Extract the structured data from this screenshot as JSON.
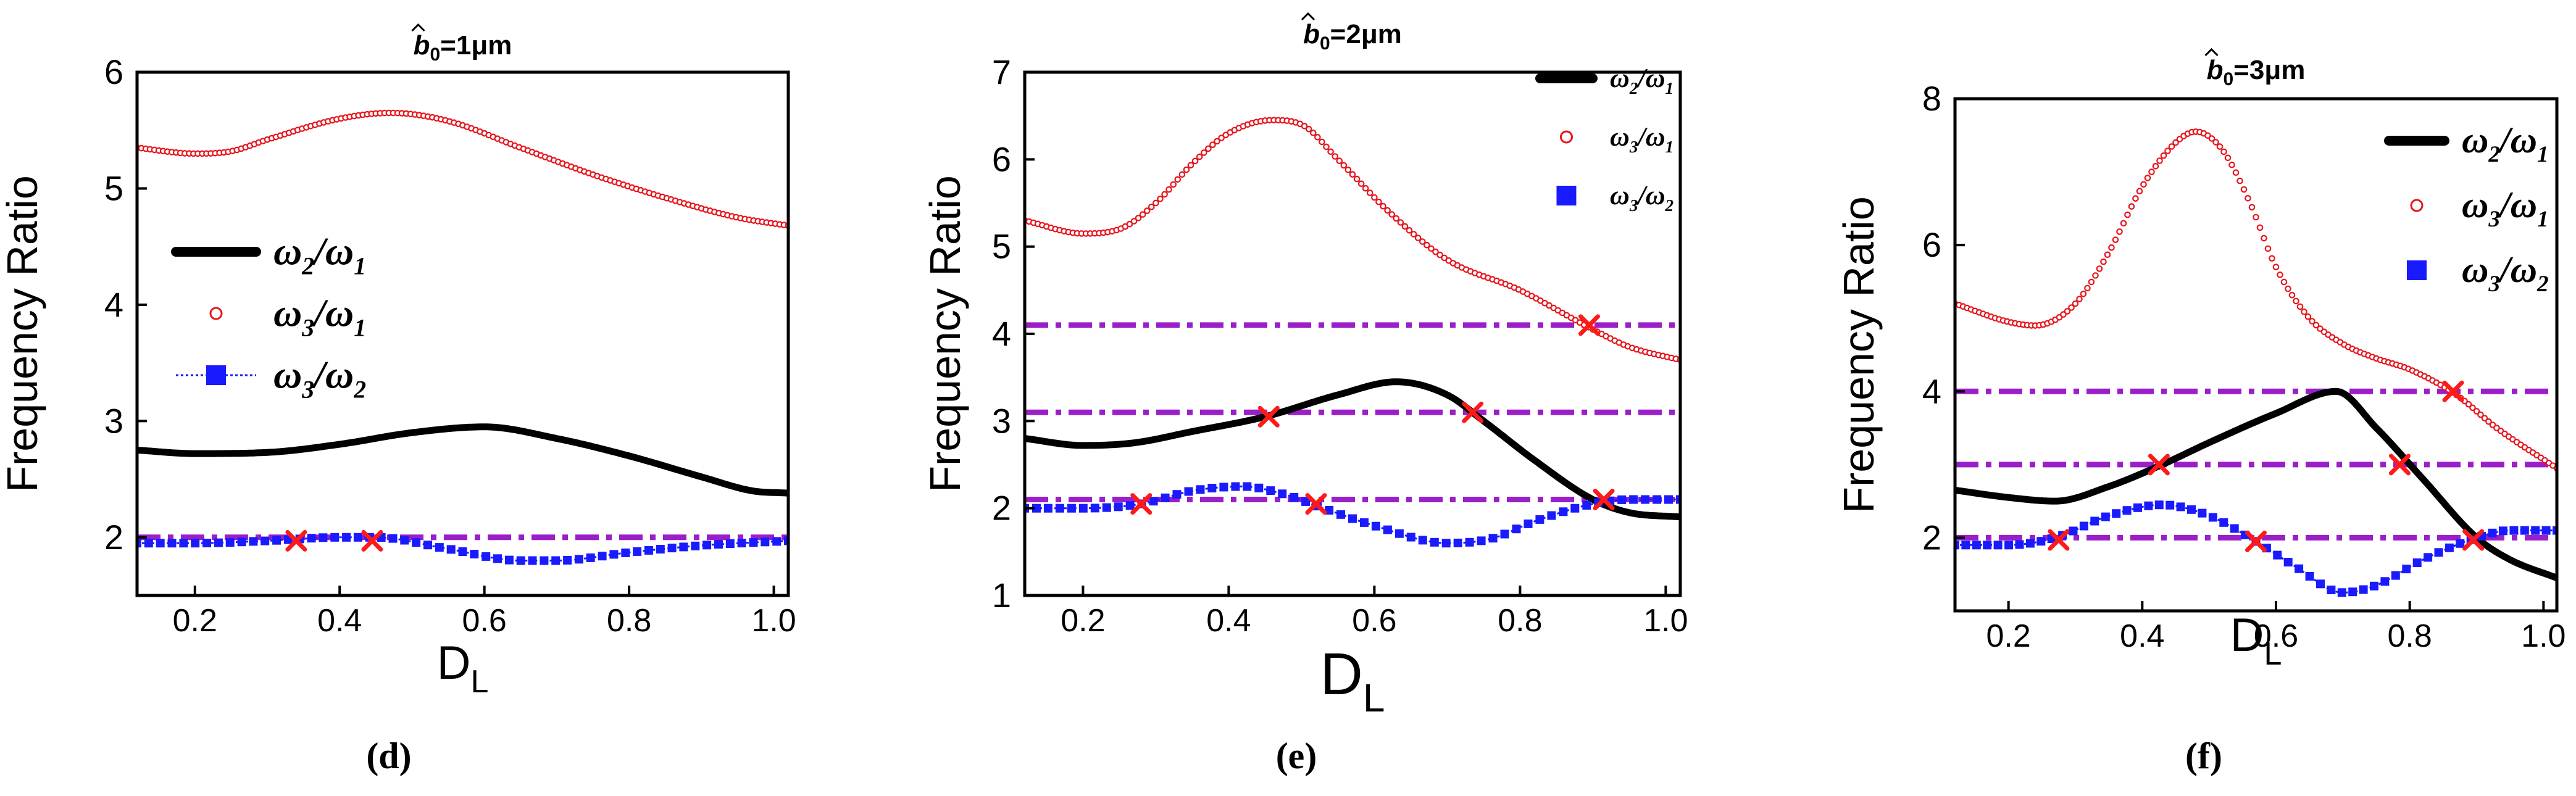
{
  "colors": {
    "axis": "#000000",
    "series1": "#000000",
    "series2": "#e8141c",
    "series3": "#1a1aff",
    "ref_line": "#9b1fc9",
    "cross": "#ff1a1a"
  },
  "chart_data": [
    {
      "id": "d",
      "type": "line",
      "panel_label": "(d)",
      "title_prefix": "b",
      "title_sub": "0",
      "title_suffix": "=1μm",
      "xlabel": "D",
      "xlabel_sub": "L",
      "ylabel": "Frequency Ratio",
      "xlim": [
        0.12,
        1.02
      ],
      "ylim": [
        1.5,
        6
      ],
      "xticks": [
        0.2,
        0.4,
        0.6,
        0.8,
        1.0
      ],
      "xtick_labels": [
        "0.2",
        "0.4",
        "0.6",
        "0.8",
        "1.0"
      ],
      "yticks": [
        2,
        3,
        4,
        5,
        6
      ],
      "ytick_labels": [
        "2",
        "3",
        "4",
        "5",
        "6"
      ],
      "legend": {
        "position": "center-left",
        "entries": [
          {
            "series": 0,
            "label": "ω",
            "num_sub": "2",
            "den_sub": "1"
          },
          {
            "series": 1,
            "label": "ω",
            "num_sub": "3",
            "den_sub": "1"
          },
          {
            "series": 2,
            "label": "ω",
            "num_sub": "3",
            "den_sub": "2"
          }
        ]
      },
      "series": [
        {
          "name": "ω2/ω1",
          "style": "thick-line",
          "x": [
            0.12,
            0.2,
            0.3,
            0.4,
            0.5,
            0.6,
            0.7,
            0.8,
            0.9,
            0.97,
            1.02
          ],
          "values": [
            2.75,
            2.72,
            2.73,
            2.8,
            2.9,
            2.95,
            2.85,
            2.7,
            2.52,
            2.4,
            2.38
          ]
        },
        {
          "name": "ω3/ω1",
          "style": "open-circles",
          "x": [
            0.12,
            0.2,
            0.25,
            0.3,
            0.4,
            0.47,
            0.55,
            0.65,
            0.75,
            0.85,
            0.95,
            1.02
          ],
          "values": [
            5.35,
            5.3,
            5.32,
            5.42,
            5.6,
            5.65,
            5.58,
            5.35,
            5.12,
            4.92,
            4.75,
            4.68
          ]
        },
        {
          "name": "ω3/ω2",
          "style": "squares-dotted",
          "x": [
            0.12,
            0.2,
            0.3,
            0.4,
            0.45,
            0.55,
            0.65,
            0.7,
            0.8,
            0.9,
            1.02
          ],
          "values": [
            1.95,
            1.95,
            1.97,
            2.0,
            2.0,
            1.9,
            1.8,
            1.8,
            1.87,
            1.93,
            1.97
          ]
        }
      ],
      "ref_lines": [
        2.0
      ],
      "crosses": [
        {
          "x": 0.34,
          "y": 1.97
        },
        {
          "x": 0.445,
          "y": 1.97
        }
      ]
    },
    {
      "id": "e",
      "type": "line",
      "panel_label": "(e)",
      "title_prefix": "b",
      "title_sub": "0",
      "title_suffix": "=2μm",
      "xlabel": "D",
      "xlabel_sub": "L",
      "ylabel": "Frequency Ratio",
      "xlim": [
        0.12,
        1.02
      ],
      "ylim": [
        1,
        7
      ],
      "xticks": [
        0.2,
        0.4,
        0.6,
        0.8,
        1.0
      ],
      "xtick_labels": [
        "0.2",
        "0.4",
        "0.6",
        "0.8",
        "1.0"
      ],
      "yticks": [
        1,
        2,
        3,
        4,
        5,
        6,
        7
      ],
      "ytick_labels": [
        "1",
        "2",
        "3",
        "4",
        "5",
        "6",
        "7"
      ],
      "legend": {
        "position": "top-right",
        "entries": [
          {
            "series": 0,
            "label": "ω",
            "num_sub": "2",
            "den_sub": "1"
          },
          {
            "series": 1,
            "label": "ω",
            "num_sub": "3",
            "den_sub": "1"
          },
          {
            "series": 2,
            "label": "ω",
            "num_sub": "3",
            "den_sub": "2"
          }
        ]
      },
      "series": [
        {
          "name": "ω2/ω1",
          "style": "thick-line",
          "x": [
            0.12,
            0.2,
            0.27,
            0.35,
            0.45,
            0.55,
            0.63,
            0.7,
            0.75,
            0.82,
            0.9,
            0.95,
            1.02
          ],
          "values": [
            2.8,
            2.72,
            2.75,
            2.88,
            3.05,
            3.3,
            3.45,
            3.3,
            3.0,
            2.55,
            2.1,
            1.95,
            1.9
          ]
        },
        {
          "name": "ω3/ω1",
          "style": "open-circles",
          "x": [
            0.12,
            0.2,
            0.25,
            0.3,
            0.35,
            0.4,
            0.46,
            0.5,
            0.55,
            0.62,
            0.7,
            0.8,
            0.9,
            0.95,
            1.02
          ],
          "values": [
            5.3,
            5.15,
            5.2,
            5.5,
            5.95,
            6.3,
            6.45,
            6.4,
            6.0,
            5.4,
            4.85,
            4.5,
            4.05,
            3.85,
            3.7
          ]
        },
        {
          "name": "ω3/ω2",
          "style": "squares-dotted",
          "x": [
            0.12,
            0.2,
            0.28,
            0.35,
            0.42,
            0.48,
            0.53,
            0.6,
            0.7,
            0.76,
            0.82,
            0.9,
            0.95,
            1.02
          ],
          "values": [
            2.0,
            2.0,
            2.05,
            2.2,
            2.25,
            2.15,
            2.0,
            1.8,
            1.6,
            1.65,
            1.85,
            2.05,
            2.1,
            2.1
          ]
        }
      ],
      "ref_lines": [
        2.1,
        3.1,
        4.1
      ],
      "crosses": [
        {
          "x": 0.28,
          "y": 2.05
        },
        {
          "x": 0.52,
          "y": 2.05
        },
        {
          "x": 0.915,
          "y": 2.1
        },
        {
          "x": 0.455,
          "y": 3.05
        },
        {
          "x": 0.735,
          "y": 3.1
        },
        {
          "x": 0.895,
          "y": 4.1
        }
      ]
    },
    {
      "id": "f",
      "type": "line",
      "panel_label": "(f)",
      "title_prefix": "b",
      "title_sub": "0",
      "title_suffix": "=3μm",
      "xlabel": "D",
      "xlabel_sub": "L",
      "ylabel": "Frequency Ratio",
      "xlim": [
        0.12,
        1.02
      ],
      "ylim": [
        1,
        8
      ],
      "xticks": [
        0.2,
        0.4,
        0.6,
        0.8,
        1.0
      ],
      "xtick_labels": [
        "0.2",
        "0.4",
        "0.6",
        "0.8",
        "1.0"
      ],
      "yticks": [
        2,
        4,
        6,
        8
      ],
      "ytick_labels": [
        "2",
        "4",
        "6",
        "8"
      ],
      "legend": {
        "position": "top-right",
        "entries": [
          {
            "series": 0,
            "label": "ω",
            "num_sub": "2",
            "den_sub": "1"
          },
          {
            "series": 1,
            "label": "ω",
            "num_sub": "3",
            "den_sub": "1"
          },
          {
            "series": 2,
            "label": "ω",
            "num_sub": "3",
            "den_sub": "2"
          }
        ]
      },
      "series": [
        {
          "name": "ω2/ω1",
          "style": "thick-line",
          "x": [
            0.12,
            0.2,
            0.27,
            0.35,
            0.43,
            0.5,
            0.6,
            0.69,
            0.75,
            0.82,
            0.9,
            0.95,
            1.02
          ],
          "values": [
            2.65,
            2.55,
            2.5,
            2.7,
            3.0,
            3.3,
            3.7,
            4.0,
            3.5,
            2.8,
            2.0,
            1.7,
            1.45
          ]
        },
        {
          "name": "ω3/ω1",
          "style": "open-circles",
          "x": [
            0.12,
            0.2,
            0.24,
            0.3,
            0.35,
            0.4,
            0.45,
            0.48,
            0.52,
            0.56,
            0.6,
            0.65,
            0.7,
            0.75,
            0.8,
            0.87,
            0.93,
            1.02
          ],
          "values": [
            5.2,
            4.95,
            4.9,
            5.2,
            5.9,
            6.8,
            7.4,
            7.55,
            7.3,
            6.6,
            5.7,
            5.0,
            4.65,
            4.45,
            4.3,
            3.95,
            3.5,
            2.95
          ]
        },
        {
          "name": "ω3/ω2",
          "style": "squares-dotted",
          "x": [
            0.12,
            0.2,
            0.27,
            0.35,
            0.43,
            0.5,
            0.57,
            0.63,
            0.7,
            0.75,
            0.82,
            0.9,
            0.95,
            1.02
          ],
          "values": [
            1.9,
            1.9,
            2.0,
            2.3,
            2.45,
            2.3,
            1.95,
            1.6,
            1.25,
            1.35,
            1.7,
            2.0,
            2.1,
            2.1
          ]
        }
      ],
      "ref_lines": [
        2.0,
        3.0,
        4.0
      ],
      "crosses": [
        {
          "x": 0.275,
          "y": 1.97
        },
        {
          "x": 0.57,
          "y": 1.95
        },
        {
          "x": 0.895,
          "y": 1.97
        },
        {
          "x": 0.425,
          "y": 3.0
        },
        {
          "x": 0.785,
          "y": 3.0
        },
        {
          "x": 0.865,
          "y": 4.0
        }
      ]
    }
  ]
}
